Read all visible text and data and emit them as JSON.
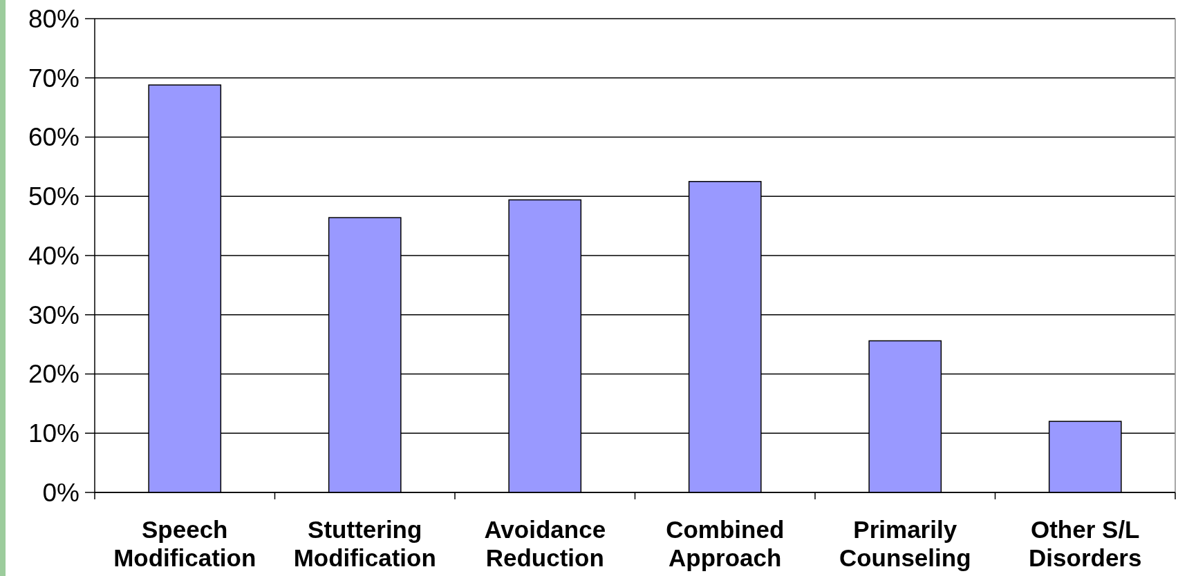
{
  "chart_data": {
    "type": "bar",
    "categories": [
      "Speech\nModification",
      "Stuttering\nModification",
      "Avoidance\nReduction",
      "Combined\nApproach",
      "Primarily\nCounseling",
      "Other S/L\nDisorders"
    ],
    "values": [
      68.8,
      46.4,
      49.4,
      52.5,
      25.6,
      12.0
    ],
    "color": "#9999ff",
    "ylim": [
      0,
      80
    ],
    "yticks": [
      {
        "value": 0,
        "label": "0%"
      },
      {
        "value": 10,
        "label": "10%"
      },
      {
        "value": 20,
        "label": "20%"
      },
      {
        "value": 30,
        "label": "30%"
      },
      {
        "value": 40,
        "label": "40%"
      },
      {
        "value": 50,
        "label": "50%"
      },
      {
        "value": 60,
        "label": "60%"
      },
      {
        "value": 70,
        "label": "70%"
      },
      {
        "value": 80,
        "label": "80%"
      }
    ],
    "grid": "y"
  }
}
